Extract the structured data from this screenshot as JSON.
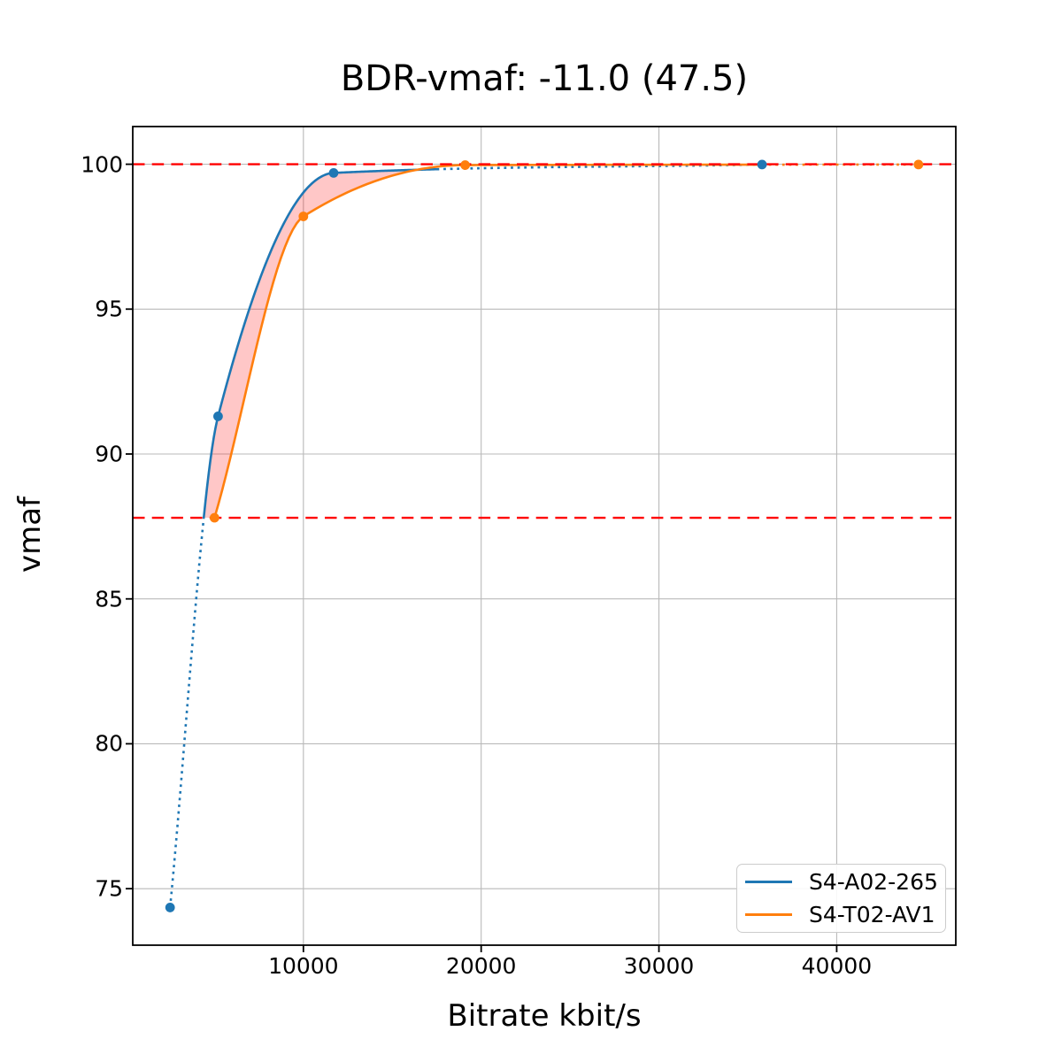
{
  "chart_data": {
    "type": "line",
    "title": "BDR-vmaf: -11.0 (47.5)",
    "xlabel": "Bitrate kbit/s",
    "ylabel": "vmaf",
    "xlim": [
      400,
      46700
    ],
    "ylim": [
      73.05,
      101.3
    ],
    "xticks": [
      10000,
      20000,
      30000,
      40000
    ],
    "yticks": [
      75,
      80,
      85,
      90,
      95,
      100
    ],
    "grid": true,
    "legend_position": "lower right",
    "series": [
      {
        "name": "S4-A02-265",
        "color": "#1f77b4",
        "points": [
          [
            2500,
            74.35
          ],
          [
            5200,
            91.3
          ],
          [
            11700,
            99.7
          ],
          [
            35800,
            99.99
          ]
        ],
        "solid_from_y": 87.8,
        "solid_to_x": 17500
      },
      {
        "name": "S4-T02-AV1",
        "color": "#ff7f0e",
        "points": [
          [
            5000,
            87.8
          ],
          [
            10000,
            98.2
          ],
          [
            19100,
            99.97
          ],
          [
            44600,
            99.99
          ]
        ],
        "solid_to_x": 35800
      }
    ],
    "hlines": [
      {
        "y": 100.0,
        "color": "#ff0000",
        "style": "dashed"
      },
      {
        "y": 87.8,
        "color": "#ff0000",
        "style": "dashed"
      }
    ],
    "fill_between": {
      "upper_series": 0,
      "lower_series": 1,
      "baseline_y": 87.8,
      "baseline_until_x": 5000,
      "x_to": 17500,
      "color": "rgba(255,0,0,0.22)"
    }
  }
}
